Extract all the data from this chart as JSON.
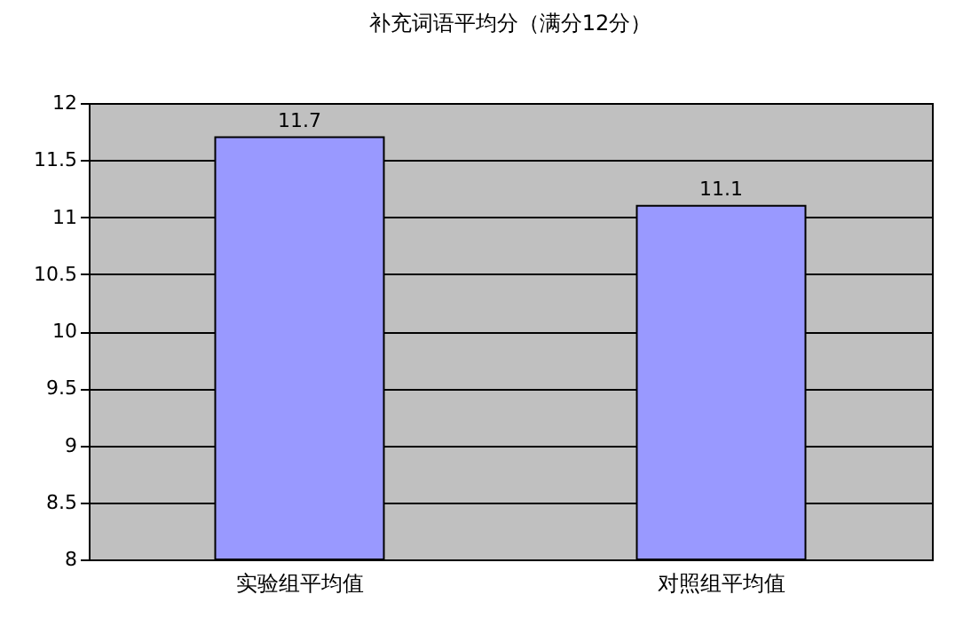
{
  "chart_data": {
    "type": "bar",
    "title": "补充词语平均分（满分12分）",
    "categories": [
      "实验组平均值",
      "对照组平均值"
    ],
    "values": [
      11.7,
      11.1
    ],
    "color": "#9999ff",
    "ylim": [
      8,
      12
    ],
    "yticks": [
      8,
      8.5,
      9,
      9.5,
      10,
      10.5,
      11,
      11.5,
      12
    ],
    "grid": "y",
    "data_labels": true
  }
}
